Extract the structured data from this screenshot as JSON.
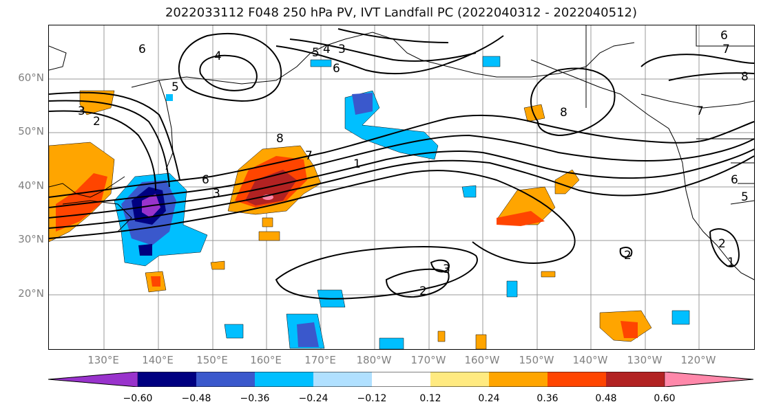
{
  "title": "2022033112 F048 250 hPa PV, IVT Landfall PC (2022040312 - 2022040512)",
  "lat_labels": [
    "60°N",
    "50°N",
    "40°N",
    "30°N",
    "20°N"
  ],
  "lon_labels": [
    "130°E",
    "140°E",
    "150°E",
    "160°E",
    "170°E",
    "180°W",
    "170°W",
    "160°W",
    "150°W",
    "140°W",
    "130°W",
    "120°W"
  ],
  "contour_labels": [
    "6",
    "4",
    "5",
    "5",
    "4",
    "3",
    "6",
    "3",
    "2",
    "8",
    "6",
    "3",
    "7",
    "1",
    "8",
    "7",
    "6",
    "8",
    "7",
    "2",
    "2",
    "3",
    "2",
    "1",
    "6",
    "5"
  ],
  "colorbar": {
    "colors": [
      "#9933cc",
      "#000080",
      "#3a58cc",
      "#00bfff",
      "#b0e0ff",
      "#ffffff",
      "#ffea80",
      "#ffa500",
      "#ff4500",
      "#b22222",
      "#ff88aa"
    ],
    "tick_labels": [
      "−0.60",
      "−0.48",
      "−0.36",
      "−0.24",
      "−0.12",
      "0.12",
      "0.24",
      "0.36",
      "0.48",
      "0.60"
    ]
  }
}
